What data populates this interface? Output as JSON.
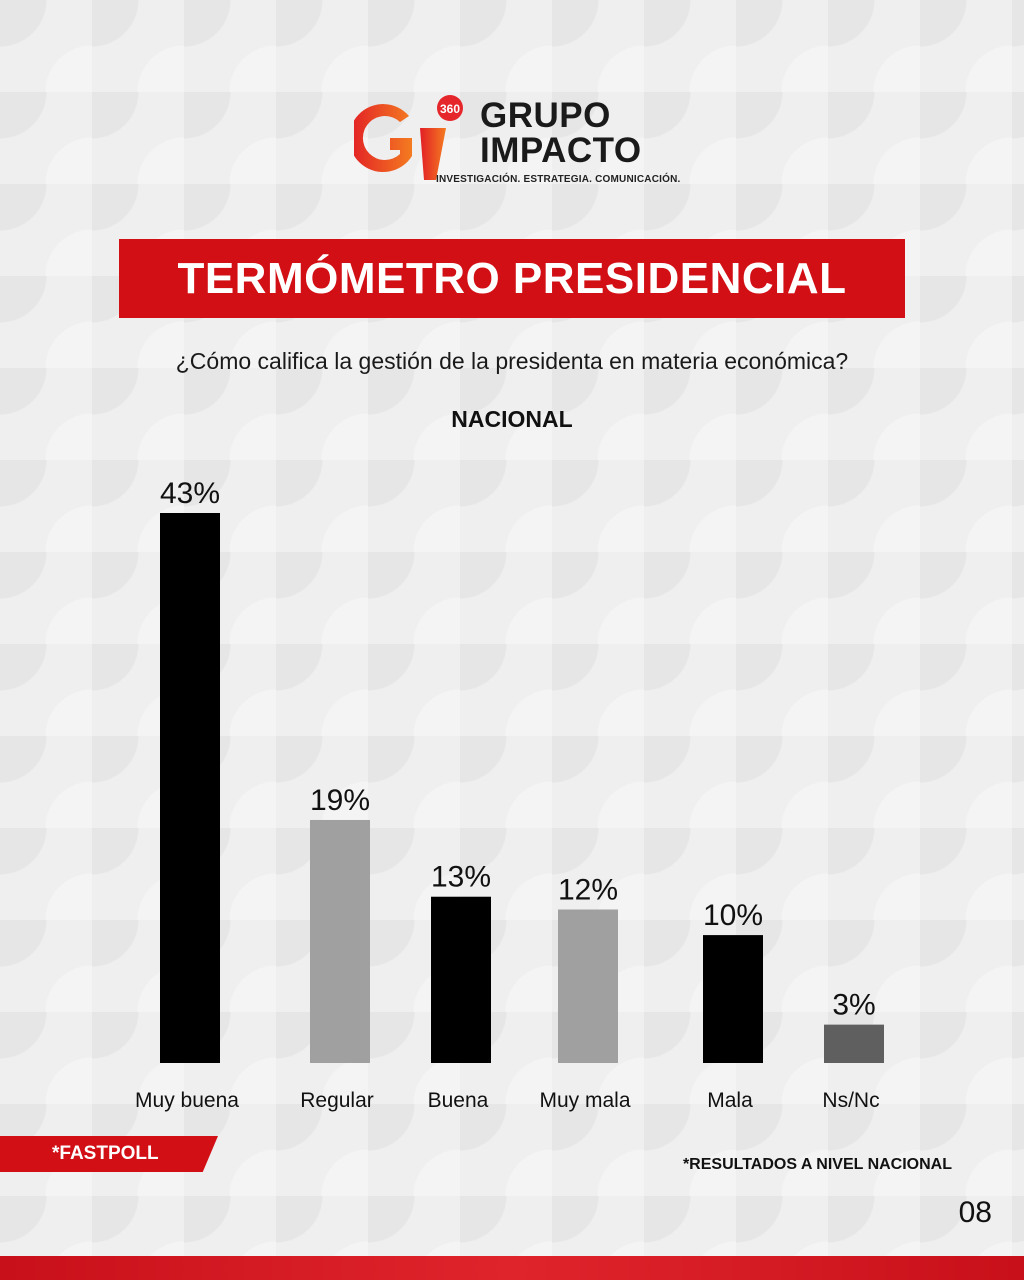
{
  "brand": {
    "name_line1": "GRUPO",
    "name_line2": "IMPACTO",
    "badge": "360",
    "tagline": "INVESTIGACIÓN. ESTRATEGIA. COMUNICACIÓN."
  },
  "title": "TERMÓMETRO PRESIDENCIAL",
  "question": "¿Cómo califica la gestión de la presidenta en materia económica?",
  "region": "NACIONAL",
  "footer": {
    "tag": "*FASTPOLL",
    "note": "*RESULTADOS A NIVEL NACIONAL",
    "page": "08"
  },
  "colors": {
    "accent": "#d10f15",
    "bar_dark": "#000000",
    "bar_light": "#a0a0a0",
    "bar_mid": "#5f5f5f"
  },
  "chart_data": {
    "type": "bar",
    "categories": [
      "Muy buena",
      "Regular",
      "Buena",
      "Muy mala",
      "Mala",
      "Ns/Nc"
    ],
    "values": [
      43,
      19,
      13,
      12,
      10,
      3
    ],
    "value_labels": [
      "43%",
      "19%",
      "13%",
      "12%",
      "10%",
      "3%"
    ],
    "bar_colors": [
      "#000000",
      "#a0a0a0",
      "#000000",
      "#a0a0a0",
      "#000000",
      "#5f5f5f"
    ],
    "ylim": [
      0,
      43
    ],
    "grid": false,
    "legend": "none"
  }
}
